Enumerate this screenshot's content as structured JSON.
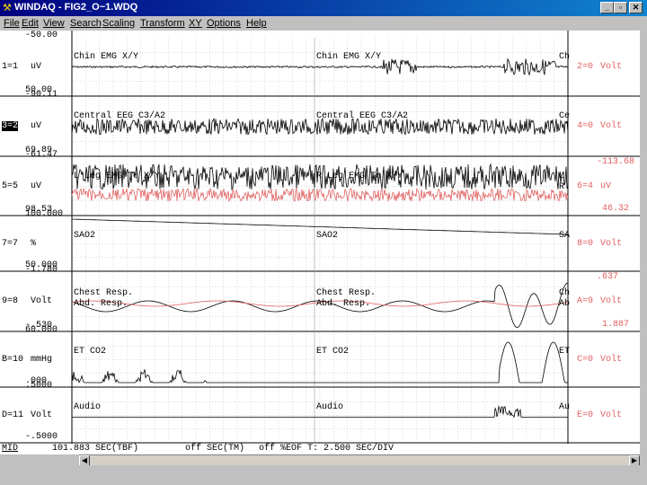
{
  "window": {
    "title": "WINDAQ - FIG2_O~1.WDQ",
    "icon": "windaq-app-icon"
  },
  "menu": [
    "File",
    "Edit",
    "View",
    "Search",
    "Scaling",
    "Transform",
    "XY",
    "Options",
    "Help"
  ],
  "channels": [
    {
      "id": "1=1",
      "unit": "uV",
      "top": "-50.00",
      "bottom": "50.00",
      "labels": [
        "Chin EMG X/Y",
        "Chin EMG X/Y",
        "Ch"
      ],
      "right_id": "2=0",
      "right_unit": "Volt"
    },
    {
      "id": "3=2",
      "unit": "uV",
      "top": "-90.11",
      "bottom": "69.89",
      "labels": [
        "Central EEG C3/A2",
        "Central EEG C3/A2",
        "Ce"
      ],
      "right_id": "4=0",
      "right_unit": "Volt"
    },
    {
      "id": "5=5",
      "unit": "uV",
      "top": "-61.47",
      "bottom": "98.53",
      "labels": [
        "L Leg EMG Te X/Y",
        "R Leg EMG Te X/Y",
        "L",
        "R"
      ],
      "right_id": "6=4",
      "right_unit": "uV",
      "right_top": "-113.68",
      "right_bottom": "46.32"
    },
    {
      "id": "7=7",
      "unit": "%",
      "top": "100.000",
      "bottom": "50.000",
      "labels": [
        "SAO2",
        "SAO2",
        "SA"
      ],
      "right_id": "8=0",
      "right_unit": "Volt"
    },
    {
      "id": "9=8",
      "unit": "Volt",
      "top": "-1.780",
      "bottom": "-.530",
      "labels": [
        "Chest Resp.",
        "Abd. Resp.",
        "Chest Resp.",
        "Abd. Resp.",
        "Ch",
        "Ab"
      ],
      "right_id": "A=9",
      "right_unit": "Volt",
      "right_top": ".637",
      "right_bottom": "1.887"
    },
    {
      "id": "B=10",
      "unit": "mmHg",
      "top": "60.000",
      "bottom": ".000",
      "labels": [
        "ET CO2",
        "ET CO2",
        "ET"
      ],
      "right_id": "C=0",
      "right_unit": "Volt"
    },
    {
      "id": "D=11",
      "unit": "Volt",
      "top": ".5000",
      "bottom": "-.5000",
      "labels": [
        "Audio",
        "Audio",
        "Au"
      ],
      "right_id": "E=0",
      "right_unit": "Volt"
    }
  ],
  "status": {
    "mode": "MID",
    "time": "101.883 SEC(TBF)",
    "tm": "off SEC(TM)",
    "eof": "off %EOF T: 2.500 SEC/DIV"
  },
  "colors": {
    "titlebar": "#000080",
    "trace": "#000000",
    "trace2": "#e06060",
    "grid": "#b0b0b0"
  }
}
